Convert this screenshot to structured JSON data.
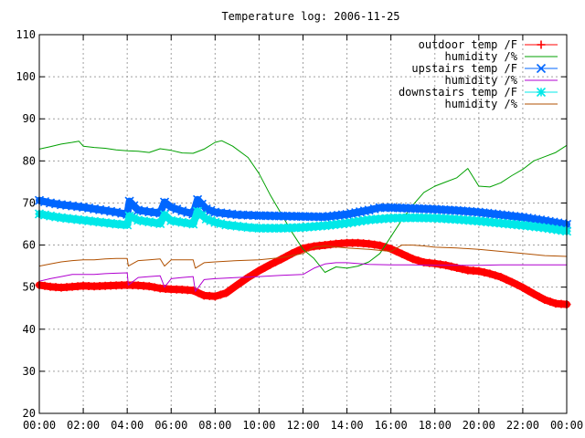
{
  "chart_data": {
    "type": "line",
    "title": "Temperature log: 2006-11-25",
    "xlabel": "",
    "ylabel": "",
    "xlim": [
      0,
      24
    ],
    "ylim": [
      20,
      110
    ],
    "xticks": [
      {
        "v": 0,
        "label": "00:00"
      },
      {
        "v": 2,
        "label": "02:00"
      },
      {
        "v": 4,
        "label": "04:00"
      },
      {
        "v": 6,
        "label": "06:00"
      },
      {
        "v": 8,
        "label": "08:00"
      },
      {
        "v": 10,
        "label": "10:00"
      },
      {
        "v": 12,
        "label": "12:00"
      },
      {
        "v": 14,
        "label": "14:00"
      },
      {
        "v": 16,
        "label": "16:00"
      },
      {
        "v": 18,
        "label": "18:00"
      },
      {
        "v": 20,
        "label": "20:00"
      },
      {
        "v": 22,
        "label": "22:00"
      },
      {
        "v": 24,
        "label": "00:00"
      }
    ],
    "yticks": [
      {
        "v": 20,
        "label": "20"
      },
      {
        "v": 30,
        "label": "30"
      },
      {
        "v": 40,
        "label": "40"
      },
      {
        "v": 50,
        "label": "50"
      },
      {
        "v": 60,
        "label": "60"
      },
      {
        "v": 70,
        "label": "70"
      },
      {
        "v": 80,
        "label": "80"
      },
      {
        "v": 90,
        "label": "90"
      },
      {
        "v": 100,
        "label": "100"
      },
      {
        "v": 110,
        "label": "110"
      }
    ],
    "grid": true,
    "legend_position": "top-right",
    "series": [
      {
        "name": "outdoor temp /F",
        "color": "#ff0000",
        "marker": "plus",
        "style": "thick",
        "points": [
          [
            0,
            50.5
          ],
          [
            0.5,
            50.1
          ],
          [
            1,
            49.9
          ],
          [
            1.5,
            50.1
          ],
          [
            2,
            50.3
          ],
          [
            2.5,
            50.2
          ],
          [
            3,
            50.3
          ],
          [
            3.5,
            50.4
          ],
          [
            4,
            50.5
          ],
          [
            4.5,
            50.4
          ],
          [
            5,
            50.2
          ],
          [
            5.5,
            49.7
          ],
          [
            6,
            49.5
          ],
          [
            6.5,
            49.4
          ],
          [
            7,
            49.2
          ],
          [
            7.5,
            48.0
          ],
          [
            8,
            47.8
          ],
          [
            8.5,
            48.6
          ],
          [
            9,
            50.5
          ],
          [
            9.5,
            52.3
          ],
          [
            10,
            53.9
          ],
          [
            10.5,
            55.3
          ],
          [
            11,
            56.6
          ],
          [
            11.5,
            58.0
          ],
          [
            12,
            59.2
          ],
          [
            12.5,
            59.7
          ],
          [
            13,
            60.0
          ],
          [
            13.5,
            60.3
          ],
          [
            14,
            60.5
          ],
          [
            14.5,
            60.5
          ],
          [
            15,
            60.3
          ],
          [
            15.5,
            59.9
          ],
          [
            16,
            59.1
          ],
          [
            16.5,
            57.9
          ],
          [
            17,
            56.7
          ],
          [
            17.5,
            55.9
          ],
          [
            18,
            55.6
          ],
          [
            18.5,
            55.2
          ],
          [
            19,
            54.6
          ],
          [
            19.5,
            54.0
          ],
          [
            20,
            53.8
          ],
          [
            20.5,
            53.2
          ],
          [
            21,
            52.4
          ],
          [
            21.5,
            51.2
          ],
          [
            22,
            49.9
          ],
          [
            22.5,
            48.4
          ],
          [
            23,
            47.0
          ],
          [
            23.5,
            46.1
          ],
          [
            24,
            45.9
          ]
        ]
      },
      {
        "name": "humidity /%",
        "color": "#00a000",
        "marker": "none",
        "style": "thin",
        "points": [
          [
            0,
            82.8
          ],
          [
            0.5,
            83.4
          ],
          [
            1,
            84.0
          ],
          [
            1.5,
            84.4
          ],
          [
            1.8,
            84.7
          ],
          [
            2,
            83.5
          ],
          [
            2.5,
            83.2
          ],
          [
            3,
            83.0
          ],
          [
            3.5,
            82.6
          ],
          [
            4,
            82.4
          ],
          [
            4.5,
            82.3
          ],
          [
            5,
            82.0
          ],
          [
            5.5,
            82.9
          ],
          [
            6,
            82.5
          ],
          [
            6.5,
            81.9
          ],
          [
            7,
            81.8
          ],
          [
            7.5,
            82.8
          ],
          [
            8,
            84.4
          ],
          [
            8.3,
            84.8
          ],
          [
            8.8,
            83.5
          ],
          [
            9.5,
            80.8
          ],
          [
            10,
            77.0
          ],
          [
            10.5,
            72.0
          ],
          [
            11,
            67.5
          ],
          [
            11.5,
            63.0
          ],
          [
            12,
            59.0
          ],
          [
            12.5,
            56.8
          ],
          [
            13,
            53.5
          ],
          [
            13.5,
            54.8
          ],
          [
            14,
            54.5
          ],
          [
            14.5,
            55.0
          ],
          [
            15,
            56.0
          ],
          [
            15.5,
            58.0
          ],
          [
            16,
            62.0
          ],
          [
            16.5,
            66.0
          ],
          [
            17,
            69.5
          ],
          [
            17.5,
            72.5
          ],
          [
            18,
            74.0
          ],
          [
            18.5,
            75.0
          ],
          [
            19,
            76.0
          ],
          [
            19.5,
            78.2
          ],
          [
            20,
            74.0
          ],
          [
            20.5,
            73.8
          ],
          [
            21,
            74.8
          ],
          [
            21.5,
            76.5
          ],
          [
            22,
            78.0
          ],
          [
            22.5,
            80.0
          ],
          [
            23,
            81.0
          ],
          [
            23.5,
            82.0
          ],
          [
            24,
            83.7
          ]
        ]
      },
      {
        "name": "upstairs temp /F",
        "color": "#0066ff",
        "marker": "cross",
        "style": "thick",
        "points": [
          [
            0,
            70.6
          ],
          [
            0.5,
            70.0
          ],
          [
            1,
            69.6
          ],
          [
            1.5,
            69.3
          ],
          [
            2,
            69.0
          ],
          [
            2.5,
            68.6
          ],
          [
            3,
            68.2
          ],
          [
            3.5,
            67.8
          ],
          [
            4,
            67.3
          ],
          [
            4.1,
            70.4
          ],
          [
            4.5,
            68.3
          ],
          [
            5,
            67.9
          ],
          [
            5.5,
            67.6
          ],
          [
            5.7,
            70.2
          ],
          [
            6,
            69.0
          ],
          [
            6.5,
            68.1
          ],
          [
            7,
            67.4
          ],
          [
            7.2,
            70.8
          ],
          [
            7.6,
            68.6
          ],
          [
            8,
            67.8
          ],
          [
            8.5,
            67.5
          ],
          [
            9,
            67.2
          ],
          [
            9.5,
            67.1
          ],
          [
            10,
            67.0
          ],
          [
            11,
            66.9
          ],
          [
            12,
            66.8
          ],
          [
            13,
            66.7
          ],
          [
            14,
            67.3
          ],
          [
            15,
            68.3
          ],
          [
            15.5,
            68.9
          ],
          [
            16,
            68.9
          ],
          [
            17,
            68.7
          ],
          [
            18,
            68.5
          ],
          [
            19,
            68.2
          ],
          [
            20,
            67.8
          ],
          [
            21,
            67.2
          ],
          [
            22,
            66.6
          ],
          [
            23,
            65.8
          ],
          [
            24,
            64.9
          ]
        ]
      },
      {
        "name": "humidity /%",
        "color": "#b000d0",
        "marker": "none",
        "style": "thin",
        "points": [
          [
            0,
            51.4
          ],
          [
            0.5,
            52.0
          ],
          [
            1,
            52.5
          ],
          [
            1.5,
            53.0
          ],
          [
            2,
            53.0
          ],
          [
            2.5,
            53.0
          ],
          [
            3,
            53.2
          ],
          [
            3.5,
            53.3
          ],
          [
            4,
            53.4
          ],
          [
            4.05,
            50.5
          ],
          [
            4.5,
            52.3
          ],
          [
            5,
            52.5
          ],
          [
            5.5,
            52.7
          ],
          [
            5.7,
            50.0
          ],
          [
            6,
            52.0
          ],
          [
            6.5,
            52.3
          ],
          [
            7,
            52.5
          ],
          [
            7.1,
            49.0
          ],
          [
            7.5,
            51.8
          ],
          [
            8,
            52.0
          ],
          [
            9,
            52.3
          ],
          [
            10,
            52.5
          ],
          [
            11,
            52.8
          ],
          [
            12,
            53.0
          ],
          [
            12.5,
            54.5
          ],
          [
            13,
            55.5
          ],
          [
            13.5,
            55.8
          ],
          [
            14,
            55.8
          ],
          [
            15,
            55.4
          ],
          [
            16,
            55.3
          ],
          [
            17,
            55.3
          ],
          [
            18,
            55.2
          ],
          [
            19,
            55.2
          ],
          [
            20,
            55.2
          ],
          [
            21,
            55.3
          ],
          [
            22,
            55.3
          ],
          [
            23,
            55.3
          ],
          [
            24,
            55.3
          ]
        ]
      },
      {
        "name": "downstairs temp /F",
        "color": "#00e8e8",
        "marker": "star",
        "style": "thick",
        "points": [
          [
            0,
            67.4
          ],
          [
            0.5,
            66.9
          ],
          [
            1,
            66.5
          ],
          [
            1.5,
            66.2
          ],
          [
            2,
            65.9
          ],
          [
            2.5,
            65.6
          ],
          [
            3,
            65.3
          ],
          [
            3.5,
            65.0
          ],
          [
            4,
            64.8
          ],
          [
            4.1,
            66.9
          ],
          [
            4.5,
            65.9
          ],
          [
            5,
            65.5
          ],
          [
            5.5,
            65.1
          ],
          [
            5.7,
            67.2
          ],
          [
            6,
            65.8
          ],
          [
            6.5,
            65.4
          ],
          [
            7,
            65.0
          ],
          [
            7.2,
            68.0
          ],
          [
            7.6,
            66.2
          ],
          [
            8,
            65.4
          ],
          [
            8.5,
            64.8
          ],
          [
            9,
            64.5
          ],
          [
            9.5,
            64.2
          ],
          [
            10,
            64.0
          ],
          [
            11,
            64.0
          ],
          [
            12,
            64.2
          ],
          [
            13,
            64.6
          ],
          [
            14,
            65.2
          ],
          [
            15,
            66.0
          ],
          [
            16,
            66.4
          ],
          [
            17,
            66.5
          ],
          [
            18,
            66.4
          ],
          [
            19,
            66.1
          ],
          [
            20,
            65.7
          ],
          [
            21,
            65.2
          ],
          [
            22,
            64.7
          ],
          [
            23,
            64.1
          ],
          [
            24,
            63.3
          ]
        ]
      },
      {
        "name": "humidity /%",
        "color": "#b05000",
        "marker": "none",
        "style": "thin",
        "points": [
          [
            0,
            55.0
          ],
          [
            0.5,
            55.5
          ],
          [
            1,
            56.0
          ],
          [
            1.5,
            56.3
          ],
          [
            2,
            56.5
          ],
          [
            2.5,
            56.5
          ],
          [
            3,
            56.7
          ],
          [
            3.5,
            56.8
          ],
          [
            4,
            56.8
          ],
          [
            4.05,
            55.0
          ],
          [
            4.5,
            56.3
          ],
          [
            5,
            56.5
          ],
          [
            5.5,
            56.7
          ],
          [
            5.7,
            55.0
          ],
          [
            6,
            56.5
          ],
          [
            6.5,
            56.5
          ],
          [
            7,
            56.5
          ],
          [
            7.1,
            54.5
          ],
          [
            7.5,
            55.8
          ],
          [
            8,
            56.0
          ],
          [
            9,
            56.3
          ],
          [
            10,
            56.5
          ],
          [
            11,
            57.0
          ],
          [
            12,
            58.0
          ],
          [
            12.5,
            59.5
          ],
          [
            13,
            59.8
          ],
          [
            14,
            59.3
          ],
          [
            15,
            59.0
          ],
          [
            16,
            58.5
          ],
          [
            16.5,
            60.0
          ],
          [
            17,
            60.0
          ],
          [
            17.5,
            59.8
          ],
          [
            18,
            59.5
          ],
          [
            19,
            59.3
          ],
          [
            20,
            59.0
          ],
          [
            21,
            58.5
          ],
          [
            22,
            58.0
          ],
          [
            23,
            57.5
          ],
          [
            24,
            57.3
          ]
        ]
      }
    ]
  }
}
